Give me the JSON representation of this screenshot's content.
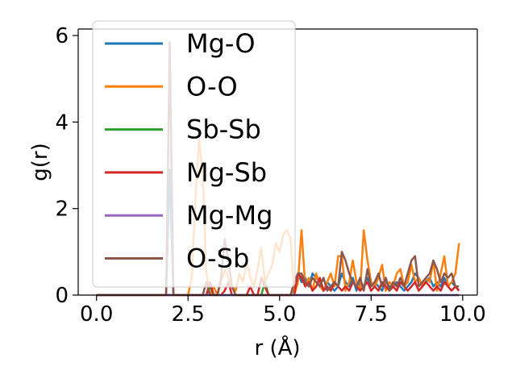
{
  "chart_data": {
    "type": "line",
    "xlabel": "r (Å)",
    "ylabel": "g(r)",
    "xlim": [
      -0.5,
      10.4
    ],
    "ylim": [
      0,
      6.15
    ],
    "x_ticks": [
      0.0,
      2.5,
      5.0,
      7.5,
      10.0
    ],
    "x_tick_labels": [
      "0.0",
      "2.5",
      "5.0",
      "7.5",
      "10.0"
    ],
    "y_ticks": [
      0,
      2,
      4,
      6
    ],
    "y_tick_labels": [
      "0",
      "2",
      "4",
      "6"
    ],
    "grid": false,
    "legend_position": "upper-left",
    "x": [
      0.0,
      0.1,
      0.2,
      0.3,
      0.4,
      0.5,
      0.6,
      0.7,
      0.8,
      0.9,
      1.0,
      1.1,
      1.2,
      1.3,
      1.4,
      1.5,
      1.6,
      1.7,
      1.8,
      1.9,
      2.0,
      2.1,
      2.2,
      2.3,
      2.4,
      2.5,
      2.6,
      2.7,
      2.8,
      2.9,
      3.0,
      3.1,
      3.2,
      3.3,
      3.4,
      3.5,
      3.6,
      3.7,
      3.8,
      3.9,
      4.0,
      4.1,
      4.2,
      4.3,
      4.4,
      4.5,
      4.6,
      4.7,
      4.8,
      4.9,
      5.0,
      5.1,
      5.2,
      5.3,
      5.4,
      5.5,
      5.6,
      5.7,
      5.8,
      5.9,
      6.0,
      6.1,
      6.2,
      6.3,
      6.4,
      6.5,
      6.6,
      6.7,
      6.8,
      6.9,
      7.0,
      7.1,
      7.2,
      7.3,
      7.4,
      7.5,
      7.6,
      7.7,
      7.8,
      7.9,
      8.0,
      8.1,
      8.2,
      8.3,
      8.4,
      8.5,
      8.6,
      8.7,
      8.8,
      8.9,
      9.0,
      9.1,
      9.2,
      9.3,
      9.4,
      9.5,
      9.6,
      9.7,
      9.8,
      9.9
    ],
    "series": [
      {
        "name": "Mg-O",
        "color": "#1f77b4",
        "values": [
          0,
          0,
          0,
          0,
          0,
          0,
          0,
          0,
          0,
          0,
          0,
          0,
          0,
          0,
          0,
          0,
          0,
          0,
          0,
          0,
          2.9,
          0,
          0,
          0,
          0,
          0,
          0,
          0,
          0,
          0,
          0,
          0,
          0,
          0,
          0,
          0,
          0,
          0,
          0,
          0,
          0,
          0,
          0,
          0,
          0,
          0,
          0,
          0,
          0,
          0,
          0,
          0,
          0,
          0,
          0.2,
          0.5,
          0.3,
          0.4,
          0.2,
          0.5,
          0.4,
          0.3,
          0.1,
          0.3,
          0.2,
          0.1,
          0.2,
          0.5,
          0.3,
          0.2,
          0.4,
          0.1,
          0.3,
          0.2,
          0.4,
          0.2,
          0.3,
          0.2,
          0.1,
          0.3,
          0.2,
          0.2,
          0.3,
          0.2,
          0.1,
          0.2,
          0.3,
          0.5,
          0.4,
          0.2,
          0.3,
          0.4,
          0.2,
          0.3,
          0.2,
          0.4,
          0.2,
          0.3,
          0.2,
          0.1
        ]
      },
      {
        "name": "O-O",
        "color": "#ff7f0e",
        "values": [
          0,
          0,
          0,
          0,
          0,
          0,
          0,
          0,
          0,
          0,
          0,
          0,
          0,
          0,
          0,
          0,
          0,
          0,
          0,
          0,
          0,
          0,
          0,
          0,
          0,
          0,
          0.4,
          2.2,
          3.6,
          2.8,
          0.5,
          0,
          0.2,
          0,
          0.3,
          0.6,
          0.4,
          0.2,
          0.1,
          0.5,
          0.3,
          0.8,
          0.4,
          0.2,
          0.6,
          1.1,
          0.3,
          0.5,
          0.7,
          1.2,
          1.0,
          1.4,
          1.5,
          1.3,
          0,
          0.3,
          1.5,
          0.2,
          0.4,
          0.1,
          0.5,
          0.2,
          0.1,
          0.3,
          0.5,
          0.2,
          0.9,
          0.9,
          0.1,
          0.3,
          0.8,
          0.3,
          0.1,
          1.5,
          0.8,
          0.3,
          0.2,
          0.4,
          0.7,
          0.1,
          0.3,
          0.2,
          0.5,
          0.6,
          0.2,
          0.3,
          0.7,
          0.3,
          0.4,
          0.2,
          0.4,
          0.3,
          0.8,
          0.1,
          0.5,
          0.9,
          0.2,
          0.3,
          0.5,
          1.2
        ]
      },
      {
        "name": "Sb-Sb",
        "color": "#2ca02c",
        "values": [
          0,
          0,
          0,
          0,
          0,
          0,
          0,
          0,
          0,
          0,
          0,
          0,
          0,
          0,
          0,
          0,
          0,
          0,
          0,
          0,
          0,
          0,
          0,
          0,
          0,
          0,
          0,
          0,
          0,
          0,
          0,
          0.2,
          0,
          0,
          0,
          0,
          0,
          0,
          0,
          0,
          0,
          0,
          0,
          0,
          0,
          0,
          0.3,
          0,
          0,
          0,
          0,
          0,
          0,
          0,
          0,
          0,
          0,
          0,
          0,
          0,
          0,
          0,
          0,
          0,
          0,
          0,
          0,
          0,
          0,
          0,
          0,
          0,
          0,
          0,
          0,
          0,
          0,
          0,
          0,
          0,
          0,
          0,
          0,
          0,
          0,
          0,
          0,
          0,
          0,
          0,
          0,
          0,
          0,
          0,
          0,
          0,
          0,
          0,
          0,
          0
        ]
      },
      {
        "name": "Mg-Sb",
        "color": "#d62728",
        "values": [
          0,
          0,
          0,
          0,
          0,
          0,
          0,
          0,
          0,
          0,
          0,
          0,
          0,
          0,
          0,
          0,
          0,
          0,
          0,
          0,
          0,
          0,
          0,
          0,
          0,
          0,
          0,
          0,
          0,
          0,
          0,
          0.3,
          0,
          0,
          0,
          0.1,
          0.3,
          0,
          0,
          0,
          0,
          0,
          0.2,
          0,
          0,
          0.4,
          0.2,
          0,
          0,
          0,
          0,
          0,
          0,
          0,
          0,
          0.5,
          0.4,
          0.2,
          0.3,
          0.1,
          0.2,
          0.4,
          0.1,
          0.2,
          0.1,
          0.3,
          0.2,
          0.1,
          0.2,
          0.1,
          0.3,
          0.2,
          0.1,
          0.2,
          0.3,
          0.1,
          0.2,
          0.1,
          0.3,
          0.2,
          0.1,
          0.2,
          0.1,
          0.3,
          0.2,
          0.1,
          0.2,
          0.3,
          0.1,
          0.2,
          0.3,
          0.2,
          0.1,
          0.2,
          0.1,
          0.3,
          0.2,
          0.1,
          0.2,
          0.1
        ]
      },
      {
        "name": "Mg-Mg",
        "color": "#9467bd",
        "values": [
          0,
          0,
          0,
          0,
          0,
          0,
          0,
          0,
          0,
          0,
          0,
          0,
          0,
          0,
          0,
          0,
          0,
          0,
          0,
          0,
          0,
          0,
          0,
          0,
          0,
          0,
          0,
          0,
          0,
          0,
          0,
          0,
          0,
          0,
          0,
          0,
          0,
          0,
          0,
          0,
          0,
          0,
          0,
          0,
          0,
          0,
          0,
          0,
          0,
          0,
          0,
          0,
          0,
          0,
          0,
          0,
          0,
          0,
          0,
          0,
          0,
          0,
          0,
          0,
          0,
          0,
          0,
          0,
          0,
          0,
          0,
          0,
          0,
          0,
          0,
          0,
          0,
          0,
          0,
          0,
          0,
          0,
          0,
          0,
          0,
          0,
          0,
          0,
          0,
          0,
          0,
          0,
          0,
          0,
          0,
          0,
          0,
          0,
          0,
          0
        ]
      },
      {
        "name": "O-Sb",
        "color": "#8c564b",
        "values": [
          0,
          0,
          0,
          0,
          0,
          0,
          0,
          0,
          0,
          0,
          0,
          0,
          0,
          0,
          0,
          0,
          0,
          0,
          0,
          0,
          5.85,
          0,
          0,
          0,
          0,
          0,
          0,
          0,
          0,
          0,
          0.3,
          0,
          0,
          0,
          0.4,
          1.3,
          0.8,
          0.2,
          0,
          0,
          0,
          0,
          0,
          0,
          0,
          0,
          0,
          0,
          0,
          0,
          0,
          0,
          0,
          0,
          0.3,
          0.5,
          0.5,
          0.3,
          0.2,
          0.4,
          0.3,
          0.2,
          0.4,
          0.1,
          0.2,
          0.3,
          0.2,
          1.0,
          0.8,
          0.5,
          0.3,
          0.2,
          0.4,
          0.1,
          0.6,
          0.2,
          0.3,
          0.5,
          0.2,
          0.4,
          0.1,
          0.3,
          0.2,
          0.4,
          0.2,
          0.5,
          0.8,
          0.9,
          0.2,
          0.3,
          0.4,
          0.5,
          0.8,
          0.6,
          0.3,
          0.5,
          0.4,
          0.5,
          0.2,
          0.2
        ]
      }
    ]
  }
}
